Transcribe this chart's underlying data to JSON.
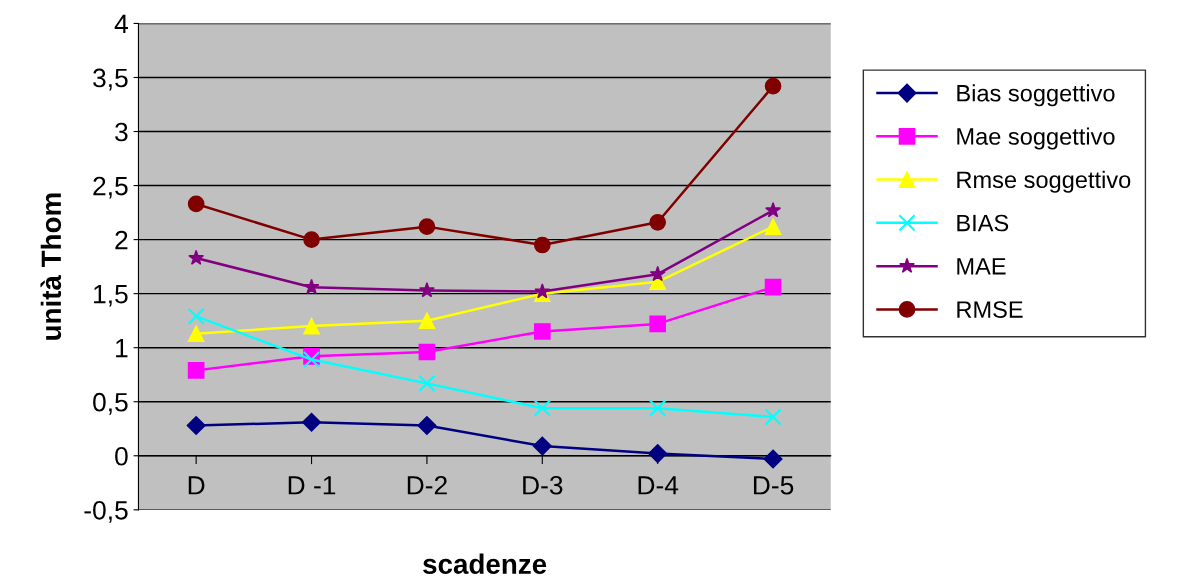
{
  "chart_data": {
    "type": "line",
    "xlabel": "scadenze",
    "ylabel": "unità Thom",
    "categories": [
      "D",
      "D -1",
      "D-2",
      "D-3",
      "D-4",
      "D-5"
    ],
    "series": [
      {
        "name": "Bias soggettivo",
        "color": "#000080",
        "marker": "diamond",
        "values": [
          0.28,
          0.31,
          0.28,
          0.09,
          0.02,
          -0.03
        ]
      },
      {
        "name": "Mae soggettivo",
        "color": "#ff00ff",
        "marker": "square",
        "values": [
          0.79,
          0.92,
          0.96,
          1.15,
          1.22,
          1.56
        ]
      },
      {
        "name": "Rmse soggettivo",
        "color": "#ffff00",
        "marker": "triangle",
        "values": [
          1.13,
          1.2,
          1.25,
          1.5,
          1.61,
          2.12
        ]
      },
      {
        "name": "BIAS",
        "color": "#00ffff",
        "marker": "cross",
        "values": [
          1.29,
          0.89,
          0.67,
          0.44,
          0.44,
          0.36
        ]
      },
      {
        "name": "MAE",
        "color": "#800080",
        "marker": "star",
        "values": [
          1.83,
          1.56,
          1.53,
          1.52,
          1.68,
          2.27
        ]
      },
      {
        "name": "RMSE",
        "color": "#800000",
        "marker": "circle",
        "values": [
          2.33,
          2.0,
          2.12,
          1.95,
          2.16,
          3.42
        ]
      }
    ],
    "ylim": [
      -0.5,
      4
    ],
    "yticks": [
      {
        "value": -0.5,
        "label": "-0,5"
      },
      0,
      {
        "value": 0.5,
        "label": "0,5"
      },
      1,
      {
        "value": 1.5,
        "label": "1,5"
      },
      2,
      {
        "value": 2.5,
        "label": "2,5"
      },
      3,
      {
        "value": 3.5,
        "label": "3,5"
      },
      4
    ],
    "grid": "y",
    "legend": "right",
    "line_style": "solid"
  }
}
